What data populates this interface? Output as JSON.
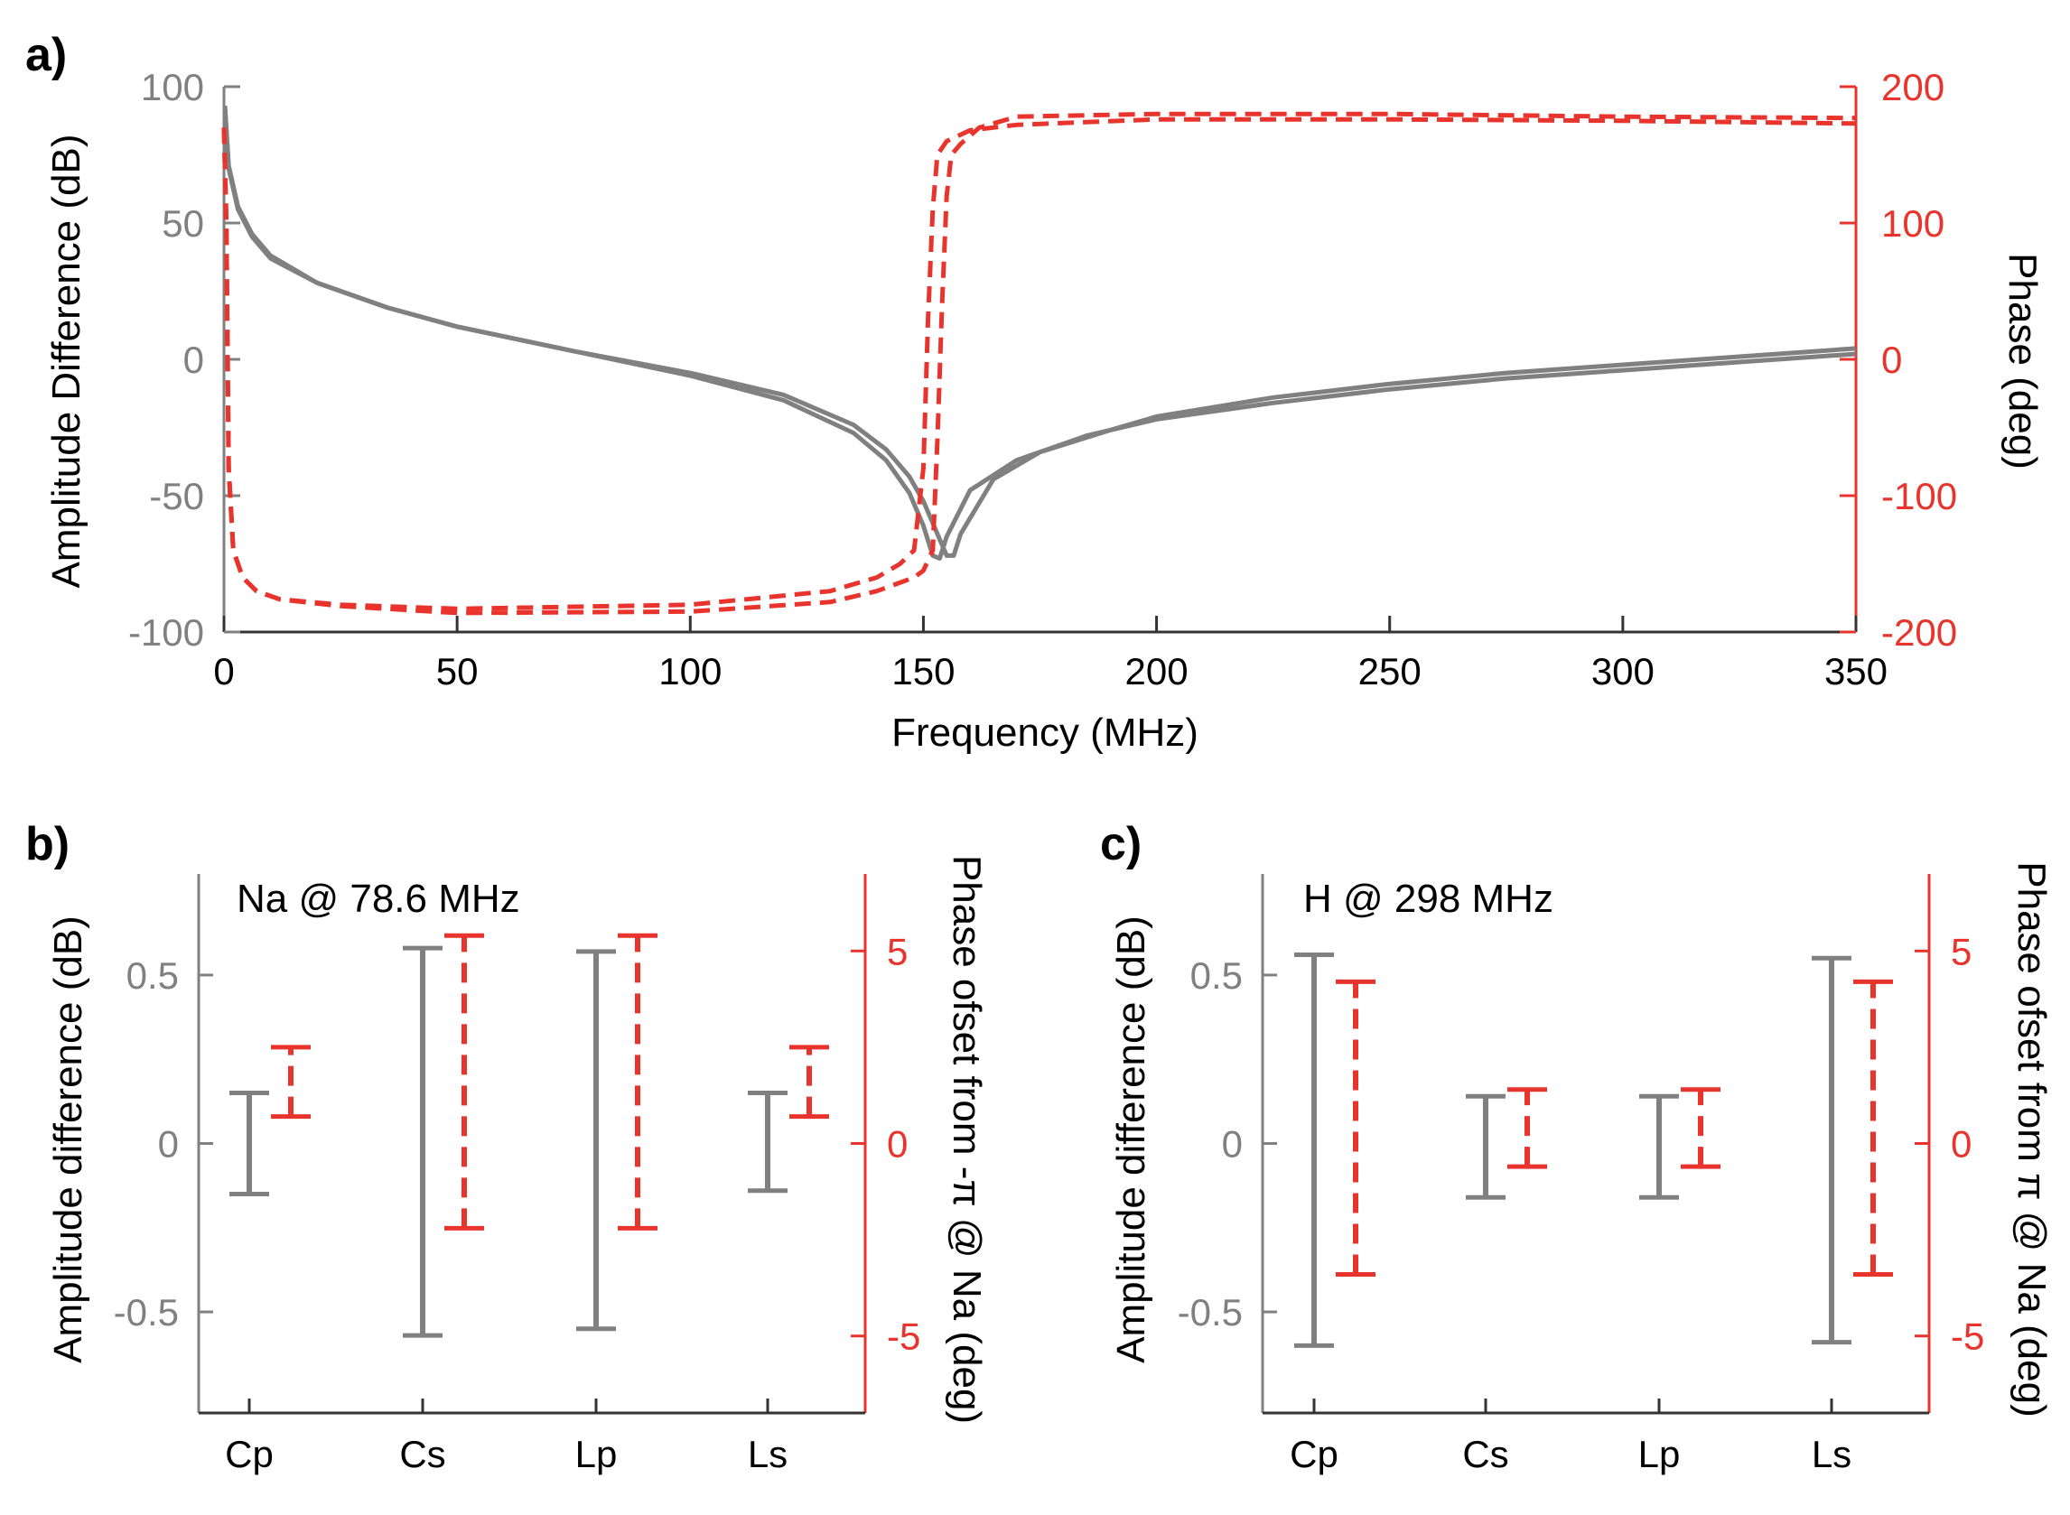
{
  "colors": {
    "amplitude": "#808080",
    "phase": "#e8342c",
    "axis_black": "#000000"
  },
  "chart_data": [
    {
      "panel": "a)",
      "type": "line",
      "xlabel": "Frequency (MHz)",
      "ylabel_left": "Amplitude Difference (dB)",
      "ylabel_right": "Phase (deg)",
      "xlim": [
        0,
        350
      ],
      "ylim_left": [
        -100,
        100
      ],
      "ylim_right": [
        -200,
        200
      ],
      "xticks": [
        "0",
        "50",
        "100",
        "150",
        "200",
        "250",
        "300",
        "350"
      ],
      "yticks_left": [
        "100",
        "50",
        "0",
        "-50",
        "-100"
      ],
      "yticks_right": [
        "200",
        "100",
        "0",
        "-100",
        "-200"
      ],
      "series": [
        {
          "axis": "left",
          "style": "solid",
          "color": "#808080",
          "x": [
            0.2,
            1,
            3,
            6,
            10,
            20,
            35,
            50,
            75,
            100,
            120,
            135,
            142,
            147,
            150,
            152,
            153.5,
            155,
            160,
            170,
            185,
            200,
            225,
            250,
            275,
            300,
            325,
            350
          ],
          "y": [
            93,
            70,
            55,
            45,
            37,
            28,
            19,
            12,
            3,
            -6,
            -15,
            -27,
            -37,
            -49,
            -61,
            -72,
            -73,
            -65,
            -48,
            -37,
            -28,
            -22,
            -16,
            -11,
            -7,
            -4,
            -1,
            2
          ]
        },
        {
          "axis": "left",
          "style": "solid",
          "color": "#808080",
          "x": [
            0.2,
            1,
            3,
            6,
            10,
            20,
            35,
            50,
            75,
            100,
            120,
            135,
            142,
            147,
            150,
            153,
            155,
            156.5,
            158,
            165,
            175,
            190,
            200,
            225,
            250,
            275,
            300,
            325,
            350
          ],
          "y": [
            93,
            71,
            56,
            46,
            38,
            28,
            19,
            12,
            3,
            -5,
            -13,
            -24,
            -33,
            -43,
            -52,
            -64,
            -72,
            -72,
            -64,
            -44,
            -34,
            -26,
            -21,
            -14,
            -9,
            -5,
            -2,
            1,
            4
          ]
        },
        {
          "axis": "right",
          "style": "dashed",
          "color": "#e8342c",
          "x": [
            0,
            0.5,
            1,
            2,
            4,
            7,
            12,
            25,
            50,
            100,
            130,
            140,
            145,
            148,
            150,
            151,
            152,
            153,
            155,
            160,
            170,
            200,
            250,
            300,
            350
          ],
          "y": [
            170,
            100,
            -80,
            -140,
            -160,
            -170,
            -176,
            -180,
            -183,
            -180,
            -170,
            -160,
            -150,
            -140,
            -80,
            30,
            110,
            150,
            160,
            168,
            172,
            176,
            176,
            175,
            173
          ]
        },
        {
          "axis": "right",
          "style": "dashed",
          "color": "#e8342c",
          "x": [
            0,
            0.5,
            1,
            2,
            4,
            7,
            12,
            25,
            50,
            100,
            130,
            140,
            148,
            150,
            152,
            153,
            154,
            155,
            156,
            158,
            162,
            170,
            200,
            250,
            300,
            350
          ],
          "y": [
            170,
            100,
            -80,
            -140,
            -160,
            -170,
            -176,
            -181,
            -186,
            -185,
            -178,
            -170,
            -160,
            -155,
            -140,
            -60,
            40,
            120,
            150,
            158,
            170,
            178,
            180,
            180,
            178,
            177
          ]
        }
      ]
    },
    {
      "panel": "b)",
      "type": "errorbar",
      "annotation": "Na @ 78.6 MHz",
      "categories": [
        "Cp",
        "Cs",
        "Lp",
        "Ls"
      ],
      "ylabel_left": "Amplitude difference (dB)",
      "ylabel_right": "Phase ofset from -π @ Na (deg)",
      "ylim_left": [
        -0.8,
        0.8
      ],
      "ylim_right": [
        -7,
        7
      ],
      "yticks_left": [
        "0.5",
        "0",
        "-0.5"
      ],
      "yticks_right": [
        "5",
        "0",
        "-5"
      ],
      "amplitude_range": [
        [
          -0.15,
          0.15
        ],
        [
          -0.57,
          0.58
        ],
        [
          -0.55,
          0.57
        ],
        [
          -0.14,
          0.15
        ]
      ],
      "phase_range": [
        [
          0.7,
          2.5
        ],
        [
          -2.2,
          5.4
        ],
        [
          -2.2,
          5.4
        ],
        [
          0.7,
          2.5
        ]
      ]
    },
    {
      "panel": "c)",
      "type": "errorbar",
      "annotation": "H @ 298 MHz",
      "categories": [
        "Cp",
        "Cs",
        "Lp",
        "Ls"
      ],
      "ylabel_left": "Amplitude difference (dB)",
      "ylabel_right": "Phase ofset from π @ Na (deg)",
      "ylim_left": [
        -0.8,
        0.8
      ],
      "ylim_right": [
        -7,
        7
      ],
      "yticks_left": [
        "0.5",
        "0",
        "-0.5"
      ],
      "yticks_right": [
        "5",
        "0",
        "-5"
      ],
      "amplitude_range": [
        [
          -0.6,
          0.56
        ],
        [
          -0.16,
          0.14
        ],
        [
          -0.16,
          0.14
        ],
        [
          -0.59,
          0.55
        ]
      ],
      "phase_range": [
        [
          -3.4,
          4.2
        ],
        [
          -0.6,
          1.4
        ],
        [
          -0.6,
          1.4
        ],
        [
          -3.4,
          4.2
        ]
      ]
    }
  ]
}
